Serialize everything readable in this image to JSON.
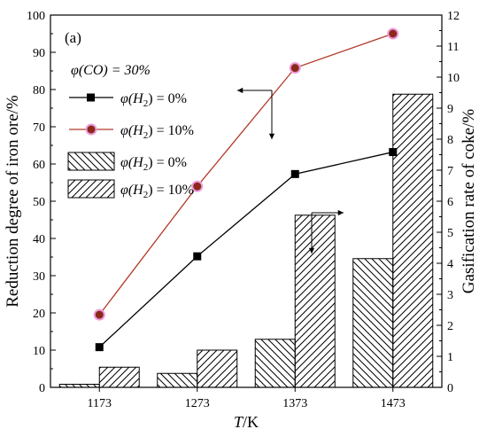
{
  "chart_data": {
    "type": "bar",
    "panel_label": "(a)",
    "condition_label": "φ(CO) = 30%",
    "xlabel_italic": "T",
    "xlabel_rest": "/K",
    "categories": [
      "1173",
      "1273",
      "1373",
      "1473"
    ],
    "left_axis": {
      "label": "Reduction degree of iron ore/%",
      "ylim": [
        0,
        100
      ],
      "ticks": [
        "0",
        "10",
        "20",
        "30",
        "40",
        "50",
        "60",
        "70",
        "80",
        "90",
        "100"
      ]
    },
    "right_axis": {
      "label": "Gasification rate of coke/%",
      "ylim": [
        0,
        12
      ],
      "ticks": [
        "0",
        "1",
        "2",
        "3",
        "4",
        "5",
        "6",
        "7",
        "8",
        "9",
        "10",
        "11",
        "12"
      ]
    },
    "line_series": [
      {
        "legend_prefix": "φ(H",
        "legend_sub": "2",
        "legend_suffix": ") = 0%",
        "marker": "square",
        "color": "#000000",
        "axis": "left",
        "values": [
          10.8,
          35.2,
          57.3,
          63.2
        ]
      },
      {
        "legend_prefix": "φ(H",
        "legend_sub": "2",
        "legend_suffix": ") = 10%",
        "marker": "circle",
        "color": "#b33a2a",
        "marker_fill": "#8b2a1a",
        "marker_halo": "#ee99dd",
        "axis": "left",
        "values": [
          19.5,
          54.0,
          85.8,
          95.0
        ]
      }
    ],
    "bar_series": [
      {
        "legend_prefix": "φ(H",
        "legend_sub": "2",
        "legend_suffix": ") = 0%",
        "hatch": "backslash",
        "axis": "right",
        "values": [
          0.1,
          0.45,
          1.55,
          4.15
        ]
      },
      {
        "legend_prefix": "φ(H",
        "legend_sub": "2",
        "legend_suffix": ") = 10%",
        "hatch": "slash",
        "axis": "right",
        "values": [
          0.65,
          1.2,
          5.55,
          9.45
        ]
      }
    ],
    "grid": false,
    "legend_position": "top-left"
  }
}
